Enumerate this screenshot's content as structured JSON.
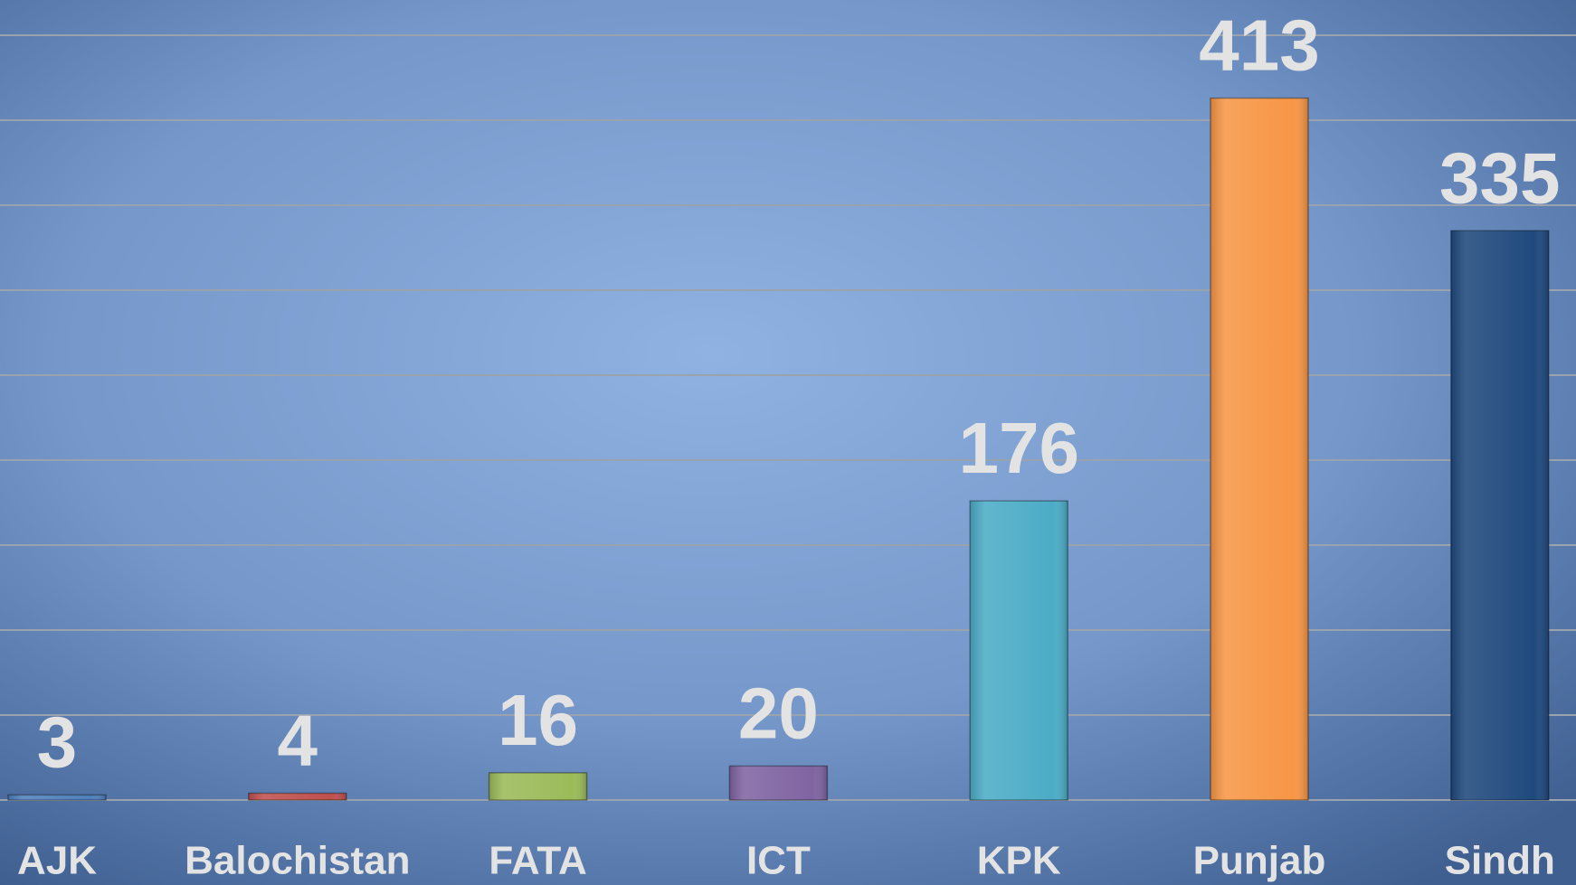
{
  "chart_data": {
    "type": "bar",
    "categories": [
      "AJK",
      "Balochistan",
      "FATA",
      "ICT",
      "KPK",
      "Punjab",
      "Sindh"
    ],
    "values": [
      3,
      4,
      16,
      20,
      176,
      413,
      335
    ],
    "colors": [
      "#4f81bd",
      "#c0504d",
      "#9bbb59",
      "#8064a2",
      "#4bacc6",
      "#f79646",
      "#1f497d"
    ],
    "ylim": [
      0,
      450
    ],
    "yticks": [
      0,
      50,
      100,
      150,
      200,
      250,
      300,
      350,
      400,
      450
    ],
    "grid": true
  }
}
